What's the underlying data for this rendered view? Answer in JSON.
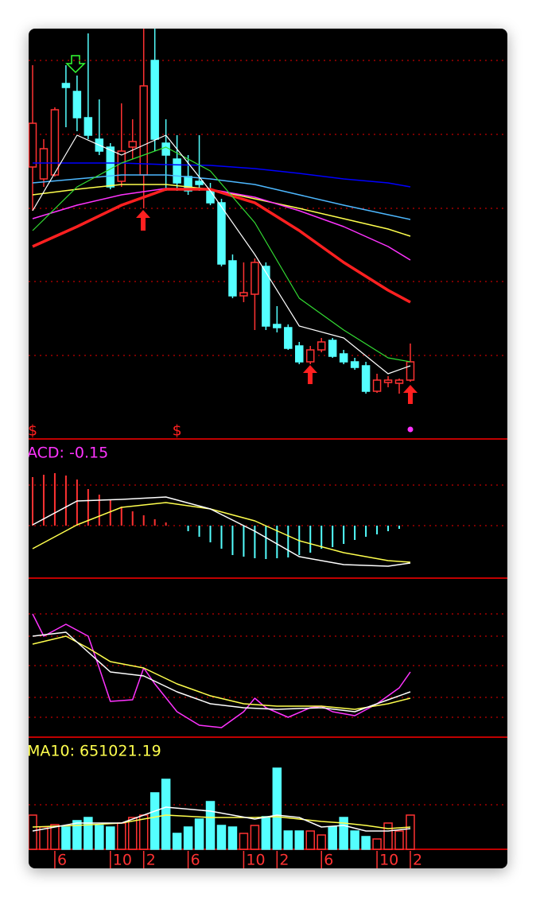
{
  "chart_data": [
    {
      "type": "candlestick",
      "up_color": "#ff3232",
      "down_color": "#54ffff",
      "categories": [
        null,
        null,
        "6",
        null,
        null,
        null,
        null,
        "10",
        null,
        null,
        "2",
        null,
        null,
        null,
        "6",
        null,
        null,
        null,
        null,
        "10",
        null,
        null,
        "2",
        null,
        null,
        null,
        "6",
        null,
        null,
        null,
        null,
        "10",
        null,
        null,
        "2"
      ],
      "open": [
        342,
        327,
        332,
        447,
        437,
        404,
        377,
        367,
        324,
        367,
        332,
        476,
        372,
        352,
        330,
        324,
        312,
        297,
        224,
        180,
        182,
        217,
        144,
        140,
        117,
        97,
        112,
        124,
        107,
        97,
        92,
        60,
        71,
        70,
        74
      ],
      "high": [
        470,
        377,
        417,
        470,
        457,
        510,
        427,
        372,
        422,
        402,
        516,
        516,
        402,
        382,
        357,
        382,
        322,
        302,
        232,
        222,
        227,
        222,
        167,
        144,
        122,
        117,
        127,
        127,
        112,
        102,
        97,
        82,
        79,
        76,
        120
      ],
      "low": [
        287,
        317,
        330,
        392,
        387,
        377,
        357,
        314,
        317,
        352,
        290,
        362,
        312,
        312,
        307,
        312,
        294,
        217,
        177,
        172,
        137,
        137,
        134,
        112,
        94,
        94,
        109,
        102,
        94,
        87,
        57,
        58,
        65,
        57,
        72
      ],
      "close": [
        397,
        365,
        414,
        442,
        404,
        382,
        362,
        317,
        362,
        374,
        444,
        377,
        357,
        322,
        312,
        320,
        297,
        220,
        180,
        184,
        222,
        142,
        140,
        114,
        97,
        112,
        122,
        104,
        97,
        90,
        60,
        74,
        74,
        74,
        97
      ],
      "ylim": [
        0,
        516
      ],
      "yticks": [
        476,
        383,
        290,
        198,
        105
      ],
      "grid": true,
      "annotations": [
        {
          "x": 0,
          "text": "$"
        },
        {
          "x": 13,
          "text": "$"
        }
      ],
      "series": [
        {
          "color": "#0000ff",
          "width": 1.5,
          "x": [
            0,
            4,
            8,
            12,
            16,
            20,
            24,
            28,
            32,
            34
          ],
          "values": [
            347,
            347,
            347,
            345,
            344,
            340,
            334,
            327,
            322,
            317
          ]
        },
        {
          "color": "#4db8ff",
          "width": 1.5,
          "x": [
            0,
            4,
            8,
            12,
            16,
            20,
            24,
            28,
            32,
            34
          ],
          "values": [
            322,
            327,
            332,
            332,
            327,
            320,
            307,
            294,
            282,
            276
          ]
        },
        {
          "color": "#ffff4d",
          "width": 1.5,
          "x": [
            0,
            4,
            8,
            12,
            16,
            20,
            24,
            28,
            32,
            34
          ],
          "values": [
            307,
            314,
            320,
            320,
            314,
            302,
            290,
            277,
            264,
            255
          ]
        },
        {
          "color": "#ff33ff",
          "width": 1.5,
          "x": [
            0,
            4,
            8,
            12,
            16,
            20,
            24,
            28,
            32,
            34
          ],
          "values": [
            277,
            294,
            307,
            315,
            314,
            304,
            287,
            267,
            242,
            225
          ]
        },
        {
          "color": "#ff2020",
          "width": 3.5,
          "x": [
            0,
            4,
            8,
            12,
            16,
            20,
            24,
            28,
            32,
            34
          ],
          "values": [
            242,
            267,
            294,
            314,
            314,
            297,
            262,
            222,
            187,
            172
          ]
        },
        {
          "color": "#33dd33",
          "width": 1.2,
          "x": [
            0,
            4,
            8,
            12,
            16,
            20,
            24,
            28,
            32,
            34
          ],
          "values": [
            262,
            317,
            347,
            367,
            337,
            272,
            177,
            137,
            102,
            97
          ]
        },
        {
          "color": "#ffffff",
          "width": 1.2,
          "x": [
            0,
            4,
            8,
            12,
            16,
            20,
            24,
            28,
            32,
            34
          ],
          "values": [
            287,
            382,
            357,
            382,
            312,
            232,
            142,
            127,
            82,
            92
          ]
        }
      ]
    },
    {
      "type": "bar",
      "title": "ACD: -0.15",
      "title_color": "#ff33ff",
      "up_color": "#ff3232",
      "down_color": "#54ffff",
      "values": [
        61,
        64,
        66,
        63,
        58,
        46,
        39,
        33,
        24,
        18,
        13,
        8,
        4,
        0,
        -7,
        -14,
        -21,
        -29,
        -37,
        -39,
        -41,
        -42,
        -41,
        -40,
        -37,
        -34,
        -29,
        -27,
        -23,
        -18,
        -14,
        -11,
        -7,
        -4
      ],
      "ylim": [
        -66,
        109
      ],
      "yticks": [
        51,
        0
      ],
      "grid": true,
      "series": [
        {
          "color": "#ffff4d",
          "width": 1.5,
          "x": [
            0,
            4,
            8,
            12,
            16,
            20,
            24,
            28,
            32,
            34
          ],
          "values": [
            -29,
            1,
            23,
            29,
            21,
            6,
            -19,
            -34,
            -44,
            -46
          ]
        },
        {
          "color": "#ffffff",
          "width": 1.5,
          "x": [
            0,
            4,
            8,
            12,
            16,
            20,
            24,
            28,
            32,
            34
          ],
          "values": [
            1,
            31,
            33,
            36,
            21,
            -7,
            -39,
            -49,
            -51,
            -47
          ]
        }
      ]
    },
    {
      "type": "line",
      "ylim": [
        0,
        200
      ],
      "yticks": [
        155,
        127,
        90,
        50,
        25
      ],
      "grid": true,
      "series": [
        {
          "color": "#ff33ff",
          "width": 1.5,
          "x": [
            0,
            1,
            3,
            5,
            6,
            7,
            9,
            10,
            11,
            13,
            15,
            17,
            19,
            20,
            21,
            23,
            25,
            26,
            27,
            29,
            31,
            33,
            34
          ],
          "values": [
            155,
            127,
            142,
            127,
            87,
            45,
            47,
            87,
            67,
            32,
            15,
            12,
            32,
            49,
            37,
            25,
            37,
            39,
            32,
            27,
            42,
            62,
            82
          ]
        },
        {
          "color": "#ffff4d",
          "width": 1.5,
          "x": [
            0,
            3,
            5,
            7,
            10,
            13,
            16,
            19,
            22,
            26,
            29,
            32,
            34
          ],
          "values": [
            117,
            127,
            112,
            95,
            87,
            67,
            52,
            42,
            39,
            39,
            35,
            42,
            49
          ]
        },
        {
          "color": "#ffffff",
          "width": 1.5,
          "x": [
            0,
            3,
            5,
            7,
            10,
            13,
            16,
            19,
            22,
            26,
            29,
            32,
            34
          ],
          "values": [
            127,
            132,
            107,
            82,
            77,
            57,
            42,
            37,
            35,
            37,
            32,
            47,
            57
          ]
        }
      ]
    },
    {
      "type": "bar",
      "title": "MA10: 651021.19",
      "title_color": "#ffff4d",
      "up_color": "#ff3232",
      "down_color": "#54ffff",
      "values": [
        43,
        28,
        31,
        28,
        36,
        40,
        30,
        28,
        33,
        40,
        43,
        71,
        88,
        20,
        28,
        38,
        60,
        30,
        28,
        20,
        30,
        41,
        102,
        23,
        23,
        23,
        18,
        28,
        40,
        23,
        16,
        13,
        33,
        23,
        43
      ],
      "ylim": [
        0,
        141
      ],
      "yticks": [
        56
      ],
      "grid": true,
      "series": [
        {
          "color": "#ffff4d",
          "width": 1.5,
          "x": [
            0,
            4,
            8,
            12,
            16,
            20,
            22,
            24,
            26,
            28,
            30,
            32,
            34
          ],
          "values": [
            28,
            30,
            33,
            43,
            40,
            40,
            41,
            38,
            35,
            33,
            30,
            26,
            28
          ]
        },
        {
          "color": "#ffffff",
          "width": 1.5,
          "x": [
            0,
            4,
            8,
            12,
            16,
            20,
            22,
            24,
            26,
            28,
            30,
            32,
            34
          ],
          "values": [
            23,
            33,
            33,
            53,
            48,
            38,
            43,
            40,
            28,
            30,
            23,
            23,
            26
          ]
        }
      ]
    }
  ]
}
